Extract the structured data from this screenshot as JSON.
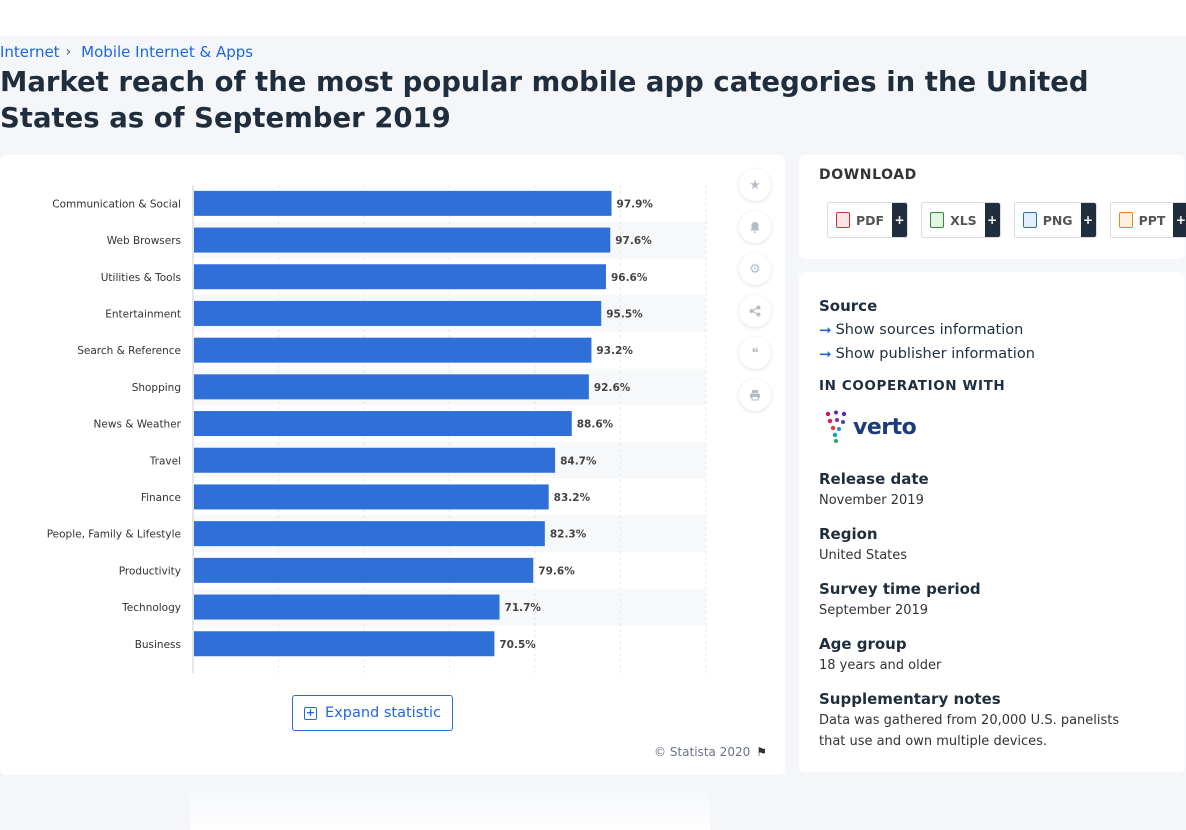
{
  "breadcrumb": {
    "items": [
      "Internet",
      "Mobile Internet & Apps"
    ],
    "separator": "›"
  },
  "title": "Market reach of the most popular mobile app categories in the United States as of September 2019",
  "chart_data": {
    "type": "bar",
    "orientation": "horizontal",
    "categories": [
      "Communication & Social",
      "Web Browsers",
      "Utilities & Tools",
      "Entertainment",
      "Search & Reference",
      "Shopping",
      "News & Weather",
      "Travel",
      "Finance",
      "People, Family & Lifestyle",
      "Productivity",
      "Technology",
      "Business"
    ],
    "values": [
      97.9,
      97.6,
      96.6,
      95.5,
      93.2,
      92.6,
      88.6,
      84.7,
      83.2,
      82.3,
      79.6,
      71.7,
      70.5
    ],
    "value_labels": [
      "97.9%",
      "97.6%",
      "96.6%",
      "95.5%",
      "93.2%",
      "92.6%",
      "88.6%",
      "84.7%",
      "83.2%",
      "82.3%",
      "79.6%",
      "71.7%",
      "70.5%"
    ],
    "xlim": [
      0,
      120
    ],
    "grid": true,
    "bar_color": "#2f6fd8",
    "title": "",
    "xlabel": "",
    "ylabel": ""
  },
  "chart_actions": [
    "star-icon",
    "bell-icon",
    "gear-icon",
    "share-icon",
    "quote-icon",
    "print-icon"
  ],
  "expand_label": "Expand statistic",
  "copyright": "© Statista 2020",
  "download": {
    "title": "DOWNLOAD",
    "formats": [
      {
        "label": "PDF",
        "more": "+"
      },
      {
        "label": "XLS",
        "more": "+"
      },
      {
        "label": "PNG",
        "more": "+"
      },
      {
        "label": "PPT",
        "more": "+"
      }
    ]
  },
  "info": {
    "source_heading": "Source",
    "show_sources": "Show sources information",
    "show_publisher": "Show publisher information",
    "coop_heading": "IN COOPERATION WITH",
    "coop_logo": "verto",
    "release_heading": "Release date",
    "release_value": "November 2019",
    "region_heading": "Region",
    "region_value": "United States",
    "survey_heading": "Survey time period",
    "survey_value": "September 2019",
    "age_heading": "Age group",
    "age_value": "18 years and older",
    "notes_heading": "Supplementary notes",
    "notes_value": "Data was gathered from 20,000 U.S. panelists that use and own multiple devices."
  }
}
